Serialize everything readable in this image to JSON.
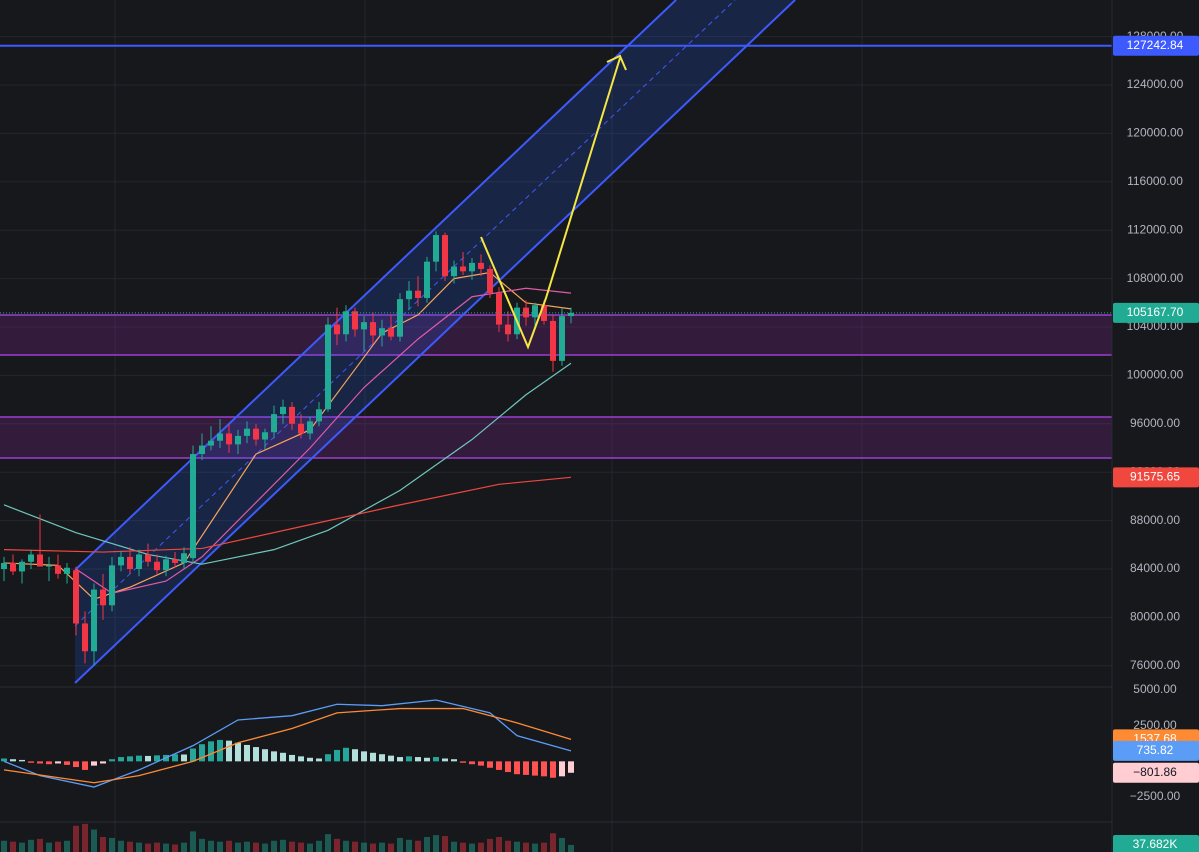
{
  "chart_data": {
    "type": "candlestick",
    "ylim": [
      74330,
      131025
    ],
    "grid": true,
    "yticks": [
      {
        "value": 128000,
        "label": "128000.00"
      },
      {
        "value": 124000,
        "label": "124000.00"
      },
      {
        "value": 120000,
        "label": "120000.00"
      },
      {
        "value": 116000,
        "label": "116000.00"
      },
      {
        "value": 112000,
        "label": "112000.00"
      },
      {
        "value": 108000,
        "label": "108000.00"
      },
      {
        "value": 104000,
        "label": "104000.00"
      },
      {
        "value": 100000,
        "label": "100000.00"
      },
      {
        "value": 96000,
        "label": "96000.00"
      },
      {
        "value": 92000,
        "label": "92000.00"
      },
      {
        "value": 88000,
        "label": "88000.00"
      },
      {
        "value": 84000,
        "label": "84000.00"
      },
      {
        "value": 80000,
        "label": "80000.00"
      },
      {
        "value": 76000,
        "label": "76000.00"
      }
    ],
    "up_color": "#22ab94",
    "down_color": "#f23645",
    "candles": {
      "open": [
        84000,
        84500,
        83800,
        84600,
        85200,
        84200,
        84300,
        83600,
        83900,
        79500,
        77200,
        82300,
        81000,
        84300,
        85000,
        84000,
        85200,
        84600,
        83900,
        84800,
        84500,
        84900,
        93500,
        94200,
        94600,
        95200,
        94300,
        95000,
        95600,
        94700,
        95300,
        96800,
        97400,
        96000,
        95200,
        96200,
        97200,
        104200,
        103400,
        105300,
        103800,
        104400,
        103300,
        103900,
        103200,
        106300,
        107000,
        106400,
        109400,
        111600,
        108200,
        109000,
        108600,
        109300,
        108800,
        106800,
        104200,
        103400,
        105600,
        104800,
        105800,
        104500,
        101200,
        104900
      ],
      "high": [
        85000,
        85200,
        84800,
        85600,
        88500,
        85000,
        85200,
        84500,
        84200,
        80500,
        82800,
        83600,
        85000,
        85500,
        85800,
        85600,
        86100,
        85200,
        85100,
        85400,
        85800,
        94200,
        95200,
        95800,
        96400,
        96000,
        95500,
        96200,
        96000,
        95600,
        97500,
        98000,
        97800,
        96800,
        96600,
        97800,
        104800,
        105600,
        105800,
        105600,
        104900,
        105200,
        104600,
        105000,
        106800,
        107800,
        108200,
        109800,
        111900,
        111800,
        109500,
        110200,
        109700,
        110000,
        109100,
        107300,
        105300,
        106000,
        106200,
        106000,
        106200,
        105000,
        105600,
        105600
      ],
      "low": [
        83000,
        83500,
        82800,
        84000,
        84300,
        83000,
        83200,
        82800,
        78500,
        76200,
        76000,
        79800,
        80500,
        83800,
        83600,
        83400,
        84200,
        83500,
        83400,
        84100,
        84000,
        84500,
        93000,
        93800,
        94000,
        93600,
        93500,
        94400,
        94200,
        93900,
        94800,
        96000,
        95500,
        94800,
        94700,
        95800,
        97000,
        102500,
        102800,
        103200,
        102000,
        102600,
        102400,
        102900,
        102800,
        105400,
        105700,
        106000,
        108600,
        107800,
        107600,
        108300,
        107900,
        108200,
        106400,
        103600,
        102800,
        103000,
        104100,
        104000,
        104200,
        100300,
        100800,
        104300
      ],
      "close": [
        84500,
        83800,
        84600,
        85200,
        84200,
        84300,
        83600,
        84100,
        79500,
        77200,
        82300,
        81000,
        84300,
        85000,
        84000,
        85200,
        84600,
        83900,
        84800,
        84500,
        85300,
        93500,
        94200,
        94600,
        95200,
        94300,
        95000,
        95600,
        94700,
        95300,
        96800,
        97400,
        96000,
        95200,
        96200,
        97200,
        104200,
        103400,
        105300,
        103800,
        104400,
        103300,
        103900,
        103200,
        106300,
        107000,
        106400,
        109400,
        111600,
        108200,
        109000,
        108600,
        109300,
        108800,
        106800,
        104200,
        103400,
        105600,
        104800,
        105800,
        104500,
        101200,
        104900,
        105167.7
      ]
    },
    "last_price_label": "105167.70",
    "target_line": {
      "value": 127242.84,
      "label": "127242.84",
      "color": "#3d5afe"
    },
    "moving_averages": [
      {
        "color": "#f7a35c",
        "x": [
          0,
          6,
          10,
          14,
          20,
          24,
          28,
          34,
          38,
          42,
          46,
          50,
          54,
          58,
          63
        ],
        "values": [
          84500,
          84300,
          81500,
          82500,
          84500,
          89000,
          93500,
          95500,
          99500,
          103500,
          105000,
          108000,
          108500,
          106000,
          105500
        ]
      },
      {
        "color": "#e05aa8",
        "x": [
          8,
          12,
          18,
          22,
          28,
          34,
          40,
          46,
          52,
          58,
          63
        ],
        "values": [
          84000,
          82000,
          83000,
          85000,
          89500,
          94000,
          99000,
          103000,
          106500,
          107200,
          106800
        ]
      },
      {
        "color": "#6fc7bd",
        "x": [
          0,
          8,
          16,
          22,
          30,
          36,
          44,
          52,
          58,
          63
        ],
        "values": [
          89300,
          87000,
          85200,
          84400,
          85600,
          87200,
          90500,
          94700,
          98400,
          101000
        ]
      },
      {
        "color": "#f0473f",
        "x": [
          0,
          11,
          22,
          33,
          44,
          55,
          63
        ],
        "values": [
          85600,
          85400,
          85700,
          87500,
          89300,
          91000,
          91575.65
        ],
        "last_label": "91575.65"
      }
    ],
    "macd": {
      "ylim": [
        -4250,
        5140
      ],
      "yticks": [
        {
          "value": 5000,
          "label": "5000.00"
        },
        {
          "value": 2500,
          "label": "2500.00"
        },
        {
          "value": -2500,
          "label": "−2500.00"
        }
      ],
      "histogram": {
        "values": [
          200,
          150,
          100,
          -100,
          -150,
          -200,
          -150,
          -250,
          -400,
          -600,
          -300,
          -150,
          150,
          300,
          350,
          400,
          380,
          420,
          450,
          500,
          480,
          900,
          1200,
          1400,
          1500,
          1450,
          1300,
          1150,
          1000,
          850,
          700,
          600,
          450,
          350,
          250,
          200,
          500,
          800,
          950,
          850,
          700,
          600,
          500,
          400,
          300,
          350,
          300,
          250,
          300,
          200,
          150,
          -100,
          -200,
          -300,
          -450,
          -600,
          -750,
          -900,
          -950,
          -1000,
          -1050,
          -1150,
          -1050,
          -801.86
        ],
        "colors": [
          "#26a69a",
          "#b2dfdb",
          "#ff5252",
          "#ffcdd2"
        ],
        "last_label": "−801.86"
      },
      "macd_line": {
        "color": "#5b9cf6",
        "x": [
          0,
          4,
          10,
          15,
          21,
          26,
          32,
          37,
          42,
          48,
          54,
          57,
          63
        ],
        "values": [
          0,
          -1000,
          -1800,
          -600,
          1100,
          2900,
          3200,
          4000,
          3900,
          4300,
          3400,
          1800,
          735.82
        ],
        "last_label": "735.82"
      },
      "signal_line": {
        "color": "#ff8a34",
        "x": [
          0,
          10,
          15,
          21,
          26,
          32,
          37,
          44,
          51,
          57,
          63
        ],
        "values": [
          -600,
          -1500,
          -1000,
          0,
          1300,
          2300,
          3400,
          3700,
          3700,
          2700,
          1537.68
        ],
        "last_label": "1537.68"
      }
    },
    "volume": {
      "ylim": [
        0,
        160000
      ],
      "values": [
        60000,
        55000,
        50000,
        65000,
        70000,
        50000,
        55000,
        60000,
        140000,
        150000,
        120000,
        80000,
        75000,
        60000,
        55000,
        50000,
        45000,
        50000,
        45000,
        40000,
        50000,
        110000,
        70000,
        60000,
        55000,
        60000,
        50000,
        55000,
        50000,
        45000,
        60000,
        65000,
        55000,
        50000,
        45000,
        60000,
        95000,
        70000,
        60000,
        55000,
        50000,
        45000,
        50000,
        45000,
        75000,
        65000,
        60000,
        80000,
        90000,
        85000,
        55000,
        50000,
        45000,
        50000,
        70000,
        80000,
        60000,
        55000,
        50000,
        45000,
        50000,
        100000,
        75000,
        37682
      ],
      "last_label": "37.682K"
    }
  }
}
